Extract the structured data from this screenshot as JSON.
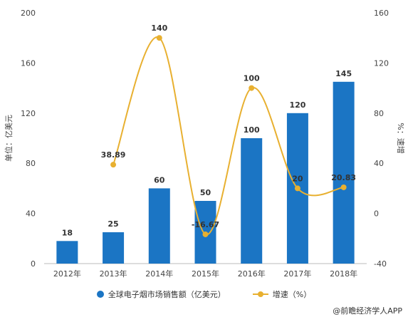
{
  "chart_data": {
    "type": "bar",
    "categories": [
      "2012年",
      "2013年",
      "2014年",
      "2015年",
      "2016年",
      "2017年",
      "2018年"
    ],
    "series": [
      {
        "name": "全球电子烟市场销售额（亿美元）",
        "type": "bar",
        "axis": "left",
        "color": "#1b75c4",
        "values": [
          18,
          25,
          60,
          50,
          100,
          120,
          145
        ],
        "labels": [
          "18",
          "25",
          "60",
          "50",
          "100",
          "120",
          "145"
        ]
      },
      {
        "name": "增速（%）",
        "type": "line",
        "axis": "right",
        "color": "#e8b030",
        "values": [
          null,
          38.89,
          140,
          -16.67,
          100,
          20,
          20.83
        ],
        "labels": [
          "",
          "38.89",
          "140",
          "-16.67",
          "100",
          "20",
          "20.83"
        ]
      }
    ],
    "ylabel": "单位：亿美元",
    "y2label": "%：速增",
    "ylim": [
      0,
      200
    ],
    "y2lim": [
      -40,
      160
    ],
    "yticks": [
      "0",
      "40",
      "80",
      "120",
      "160",
      "200"
    ],
    "y2ticks": [
      "-40",
      "0",
      "40",
      "80",
      "120",
      "160"
    ],
    "grid": false,
    "legend_position": "bottom",
    "line_smooth": true
  },
  "source_credit": "@前瞻经济学人APP"
}
